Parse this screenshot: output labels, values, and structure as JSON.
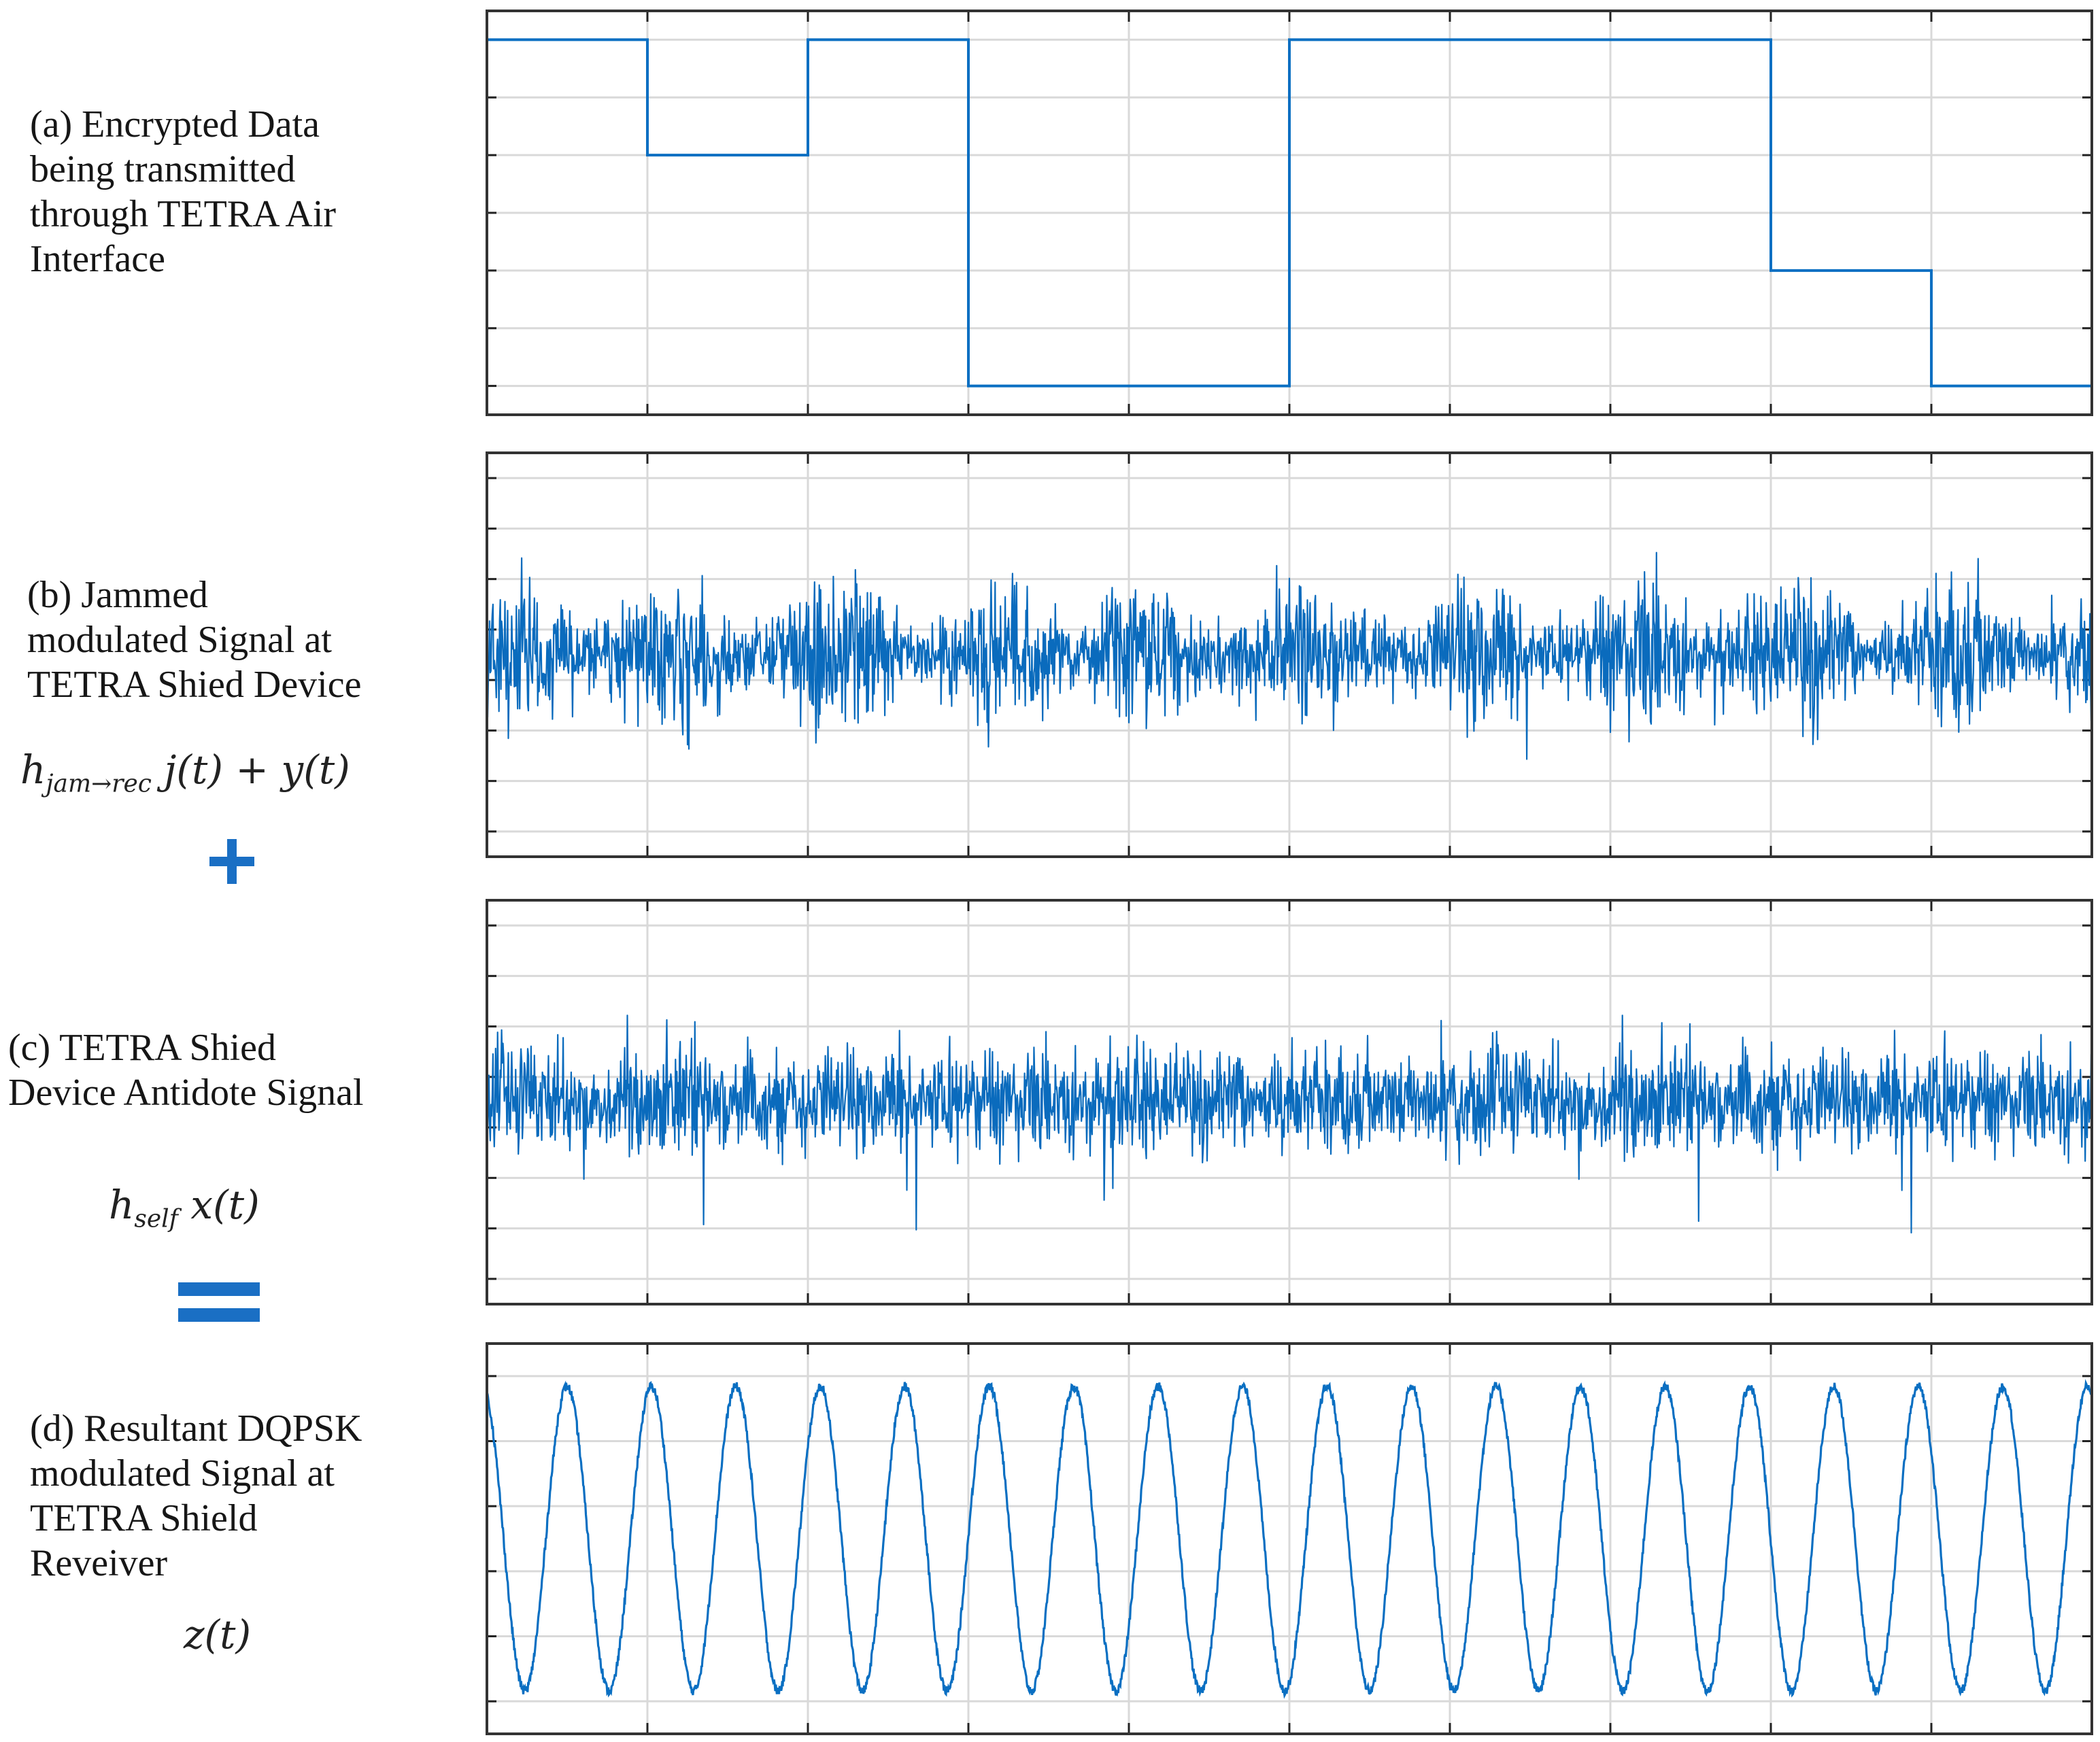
{
  "colors": {
    "signal": "#0a6fc2",
    "signal_dense": "#0a6bbd",
    "grid": "#d9d9d9",
    "frame": "#333333",
    "operator": "#1a6fc4"
  },
  "panels": [
    {
      "id": "a",
      "caption": "(a) Encrypted Data\nbeing transmitted\nthrough TETRA Air\nInterface",
      "equation": ""
    },
    {
      "id": "b",
      "caption": "(b) Jammed\nmodulated Signal at\nTETRA Shied Device",
      "equation": {
        "main": "h",
        "sub": "jam→rec",
        "rest": " j(t) + y(t)"
      }
    },
    {
      "id": "c",
      "caption": "(c) TETRA Shied\nDevice Antidote Signal",
      "equation": {
        "main": "h",
        "sub": "self",
        "rest": " x(t)"
      }
    },
    {
      "id": "d",
      "caption": "(d) Resultant DQPSK\nmodulated Signal at\nTETRA Shield\nReveiver",
      "equation": {
        "main": "z(t)",
        "sub": "",
        "rest": ""
      }
    }
  ],
  "operators": {
    "plus": "plus-sign",
    "equals": "equals-sign"
  },
  "chart_data": [
    {
      "type": "line",
      "panel": "a",
      "step": true,
      "x_segments": 10,
      "y_levels_visible": 7,
      "symbols": [
        6,
        4,
        6,
        0,
        0,
        6,
        6,
        6,
        2,
        0
      ],
      "ylim": [
        0,
        6
      ],
      "grid": true
    },
    {
      "type": "line",
      "panel": "b",
      "description_of_signal": "",
      "noise_dense": true,
      "envelope_periods": 10,
      "ylim": [
        -4,
        4
      ],
      "grid": true
    },
    {
      "type": "line",
      "panel": "c",
      "noise_dense": true,
      "ylim": [
        -4,
        4
      ],
      "grid": true
    },
    {
      "type": "line",
      "panel": "d",
      "sinusoid_cycles": 19,
      "ylim": [
        -1,
        1
      ],
      "grid": true
    }
  ]
}
